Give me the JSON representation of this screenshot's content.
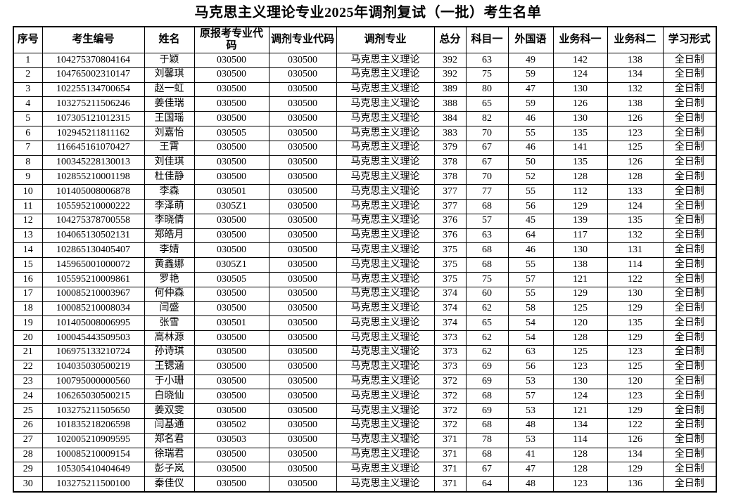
{
  "title": "马克思主义理论专业2025年调剂复试（一批）考生名单",
  "table": {
    "headers": [
      "序号",
      "考生编号",
      "姓名",
      "原报考专业代码",
      "调剂专业代码",
      "调剂专业",
      "总分",
      "科目一",
      "外国语",
      "业务科一",
      "业务科二",
      "学习形式"
    ],
    "rows": [
      [
        "1",
        "104275370804164",
        "于颖",
        "030500",
        "030500",
        "马克思主义理论",
        "392",
        "63",
        "49",
        "142",
        "138",
        "全日制"
      ],
      [
        "2",
        "104765002310147",
        "刘馨琪",
        "030500",
        "030500",
        "马克思主义理论",
        "392",
        "75",
        "59",
        "124",
        "134",
        "全日制"
      ],
      [
        "3",
        "102255134700654",
        "赵一虹",
        "030500",
        "030500",
        "马克思主义理论",
        "389",
        "80",
        "47",
        "130",
        "132",
        "全日制"
      ],
      [
        "4",
        "103275211506246",
        "姜佳瑞",
        "030500",
        "030500",
        "马克思主义理论",
        "388",
        "65",
        "59",
        "126",
        "138",
        "全日制"
      ],
      [
        "5",
        "107305121012315",
        "王国瑶",
        "030500",
        "030500",
        "马克思主义理论",
        "384",
        "82",
        "46",
        "130",
        "126",
        "全日制"
      ],
      [
        "6",
        "102945211811162",
        "刘嘉怡",
        "030505",
        "030500",
        "马克思主义理论",
        "383",
        "70",
        "55",
        "135",
        "123",
        "全日制"
      ],
      [
        "7",
        "116645161070427",
        "王霄",
        "030500",
        "030500",
        "马克思主义理论",
        "379",
        "67",
        "46",
        "141",
        "125",
        "全日制"
      ],
      [
        "8",
        "100345228130013",
        "刘佳琪",
        "030500",
        "030500",
        "马克思主义理论",
        "378",
        "67",
        "50",
        "135",
        "126",
        "全日制"
      ],
      [
        "9",
        "102855210001198",
        "杜佳静",
        "030500",
        "030500",
        "马克思主义理论",
        "378",
        "70",
        "52",
        "128",
        "128",
        "全日制"
      ],
      [
        "10",
        "101405008006878",
        "李森",
        "030501",
        "030500",
        "马克思主义理论",
        "377",
        "77",
        "55",
        "112",
        "133",
        "全日制"
      ],
      [
        "11",
        "105595210000222",
        "李泽萌",
        "0305Z1",
        "030500",
        "马克思主义理论",
        "377",
        "68",
        "56",
        "129",
        "124",
        "全日制"
      ],
      [
        "12",
        "104275378700558",
        "李晓倩",
        "030500",
        "030500",
        "马克思主义理论",
        "376",
        "57",
        "45",
        "139",
        "135",
        "全日制"
      ],
      [
        "13",
        "104065130502131",
        "郑皓月",
        "030500",
        "030500",
        "马克思主义理论",
        "376",
        "63",
        "64",
        "117",
        "132",
        "全日制"
      ],
      [
        "14",
        "102865130405407",
        "李婧",
        "030500",
        "030500",
        "马克思主义理论",
        "375",
        "68",
        "46",
        "130",
        "131",
        "全日制"
      ],
      [
        "15",
        "145965001000072",
        "黄鑫娜",
        "0305Z1",
        "030500",
        "马克思主义理论",
        "375",
        "68",
        "55",
        "138",
        "114",
        "全日制"
      ],
      [
        "16",
        "105595210009861",
        "罗艳",
        "030505",
        "030500",
        "马克思主义理论",
        "375",
        "75",
        "57",
        "121",
        "122",
        "全日制"
      ],
      [
        "17",
        "100085210003967",
        "何仲森",
        "030500",
        "030500",
        "马克思主义理论",
        "374",
        "60",
        "55",
        "129",
        "130",
        "全日制"
      ],
      [
        "18",
        "100085210008034",
        "闫盛",
        "030500",
        "030500",
        "马克思主义理论",
        "374",
        "62",
        "58",
        "125",
        "129",
        "全日制"
      ],
      [
        "19",
        "101405008006995",
        "张雪",
        "030501",
        "030500",
        "马克思主义理论",
        "374",
        "65",
        "54",
        "120",
        "135",
        "全日制"
      ],
      [
        "20",
        "100045443509503",
        "高林源",
        "030500",
        "030500",
        "马克思主义理论",
        "373",
        "62",
        "54",
        "128",
        "129",
        "全日制"
      ],
      [
        "21",
        "106975133210724",
        "孙诗琪",
        "030500",
        "030500",
        "马克思主义理论",
        "373",
        "62",
        "63",
        "125",
        "123",
        "全日制"
      ],
      [
        "22",
        "104035030500219",
        "王锶涵",
        "030500",
        "030500",
        "马克思主义理论",
        "373",
        "69",
        "56",
        "123",
        "125",
        "全日制"
      ],
      [
        "23",
        "100795000000560",
        "于小珊",
        "030500",
        "030500",
        "马克思主义理论",
        "372",
        "69",
        "53",
        "130",
        "120",
        "全日制"
      ],
      [
        "24",
        "106265030500215",
        "白晓仙",
        "030500",
        "030500",
        "马克思主义理论",
        "372",
        "68",
        "57",
        "124",
        "123",
        "全日制"
      ],
      [
        "25",
        "103275211505650",
        "姜双雯",
        "030500",
        "030500",
        "马克思主义理论",
        "372",
        "69",
        "53",
        "121",
        "129",
        "全日制"
      ],
      [
        "26",
        "101835218206598",
        "闫基通",
        "030502",
        "030500",
        "马克思主义理论",
        "372",
        "68",
        "48",
        "134",
        "122",
        "全日制"
      ],
      [
        "27",
        "102005210909595",
        "郑名君",
        "030503",
        "030500",
        "马克思主义理论",
        "371",
        "78",
        "53",
        "114",
        "126",
        "全日制"
      ],
      [
        "28",
        "100085210009154",
        "徐瑞君",
        "030500",
        "030500",
        "马克思主义理论",
        "371",
        "68",
        "41",
        "128",
        "134",
        "全日制"
      ],
      [
        "29",
        "105305410404649",
        "彭子岚",
        "030500",
        "030500",
        "马克思主义理论",
        "371",
        "67",
        "47",
        "128",
        "129",
        "全日制"
      ],
      [
        "30",
        "103275211500100",
        "秦佳仪",
        "030500",
        "030500",
        "马克思主义理论",
        "371",
        "64",
        "48",
        "123",
        "136",
        "全日制"
      ]
    ]
  }
}
